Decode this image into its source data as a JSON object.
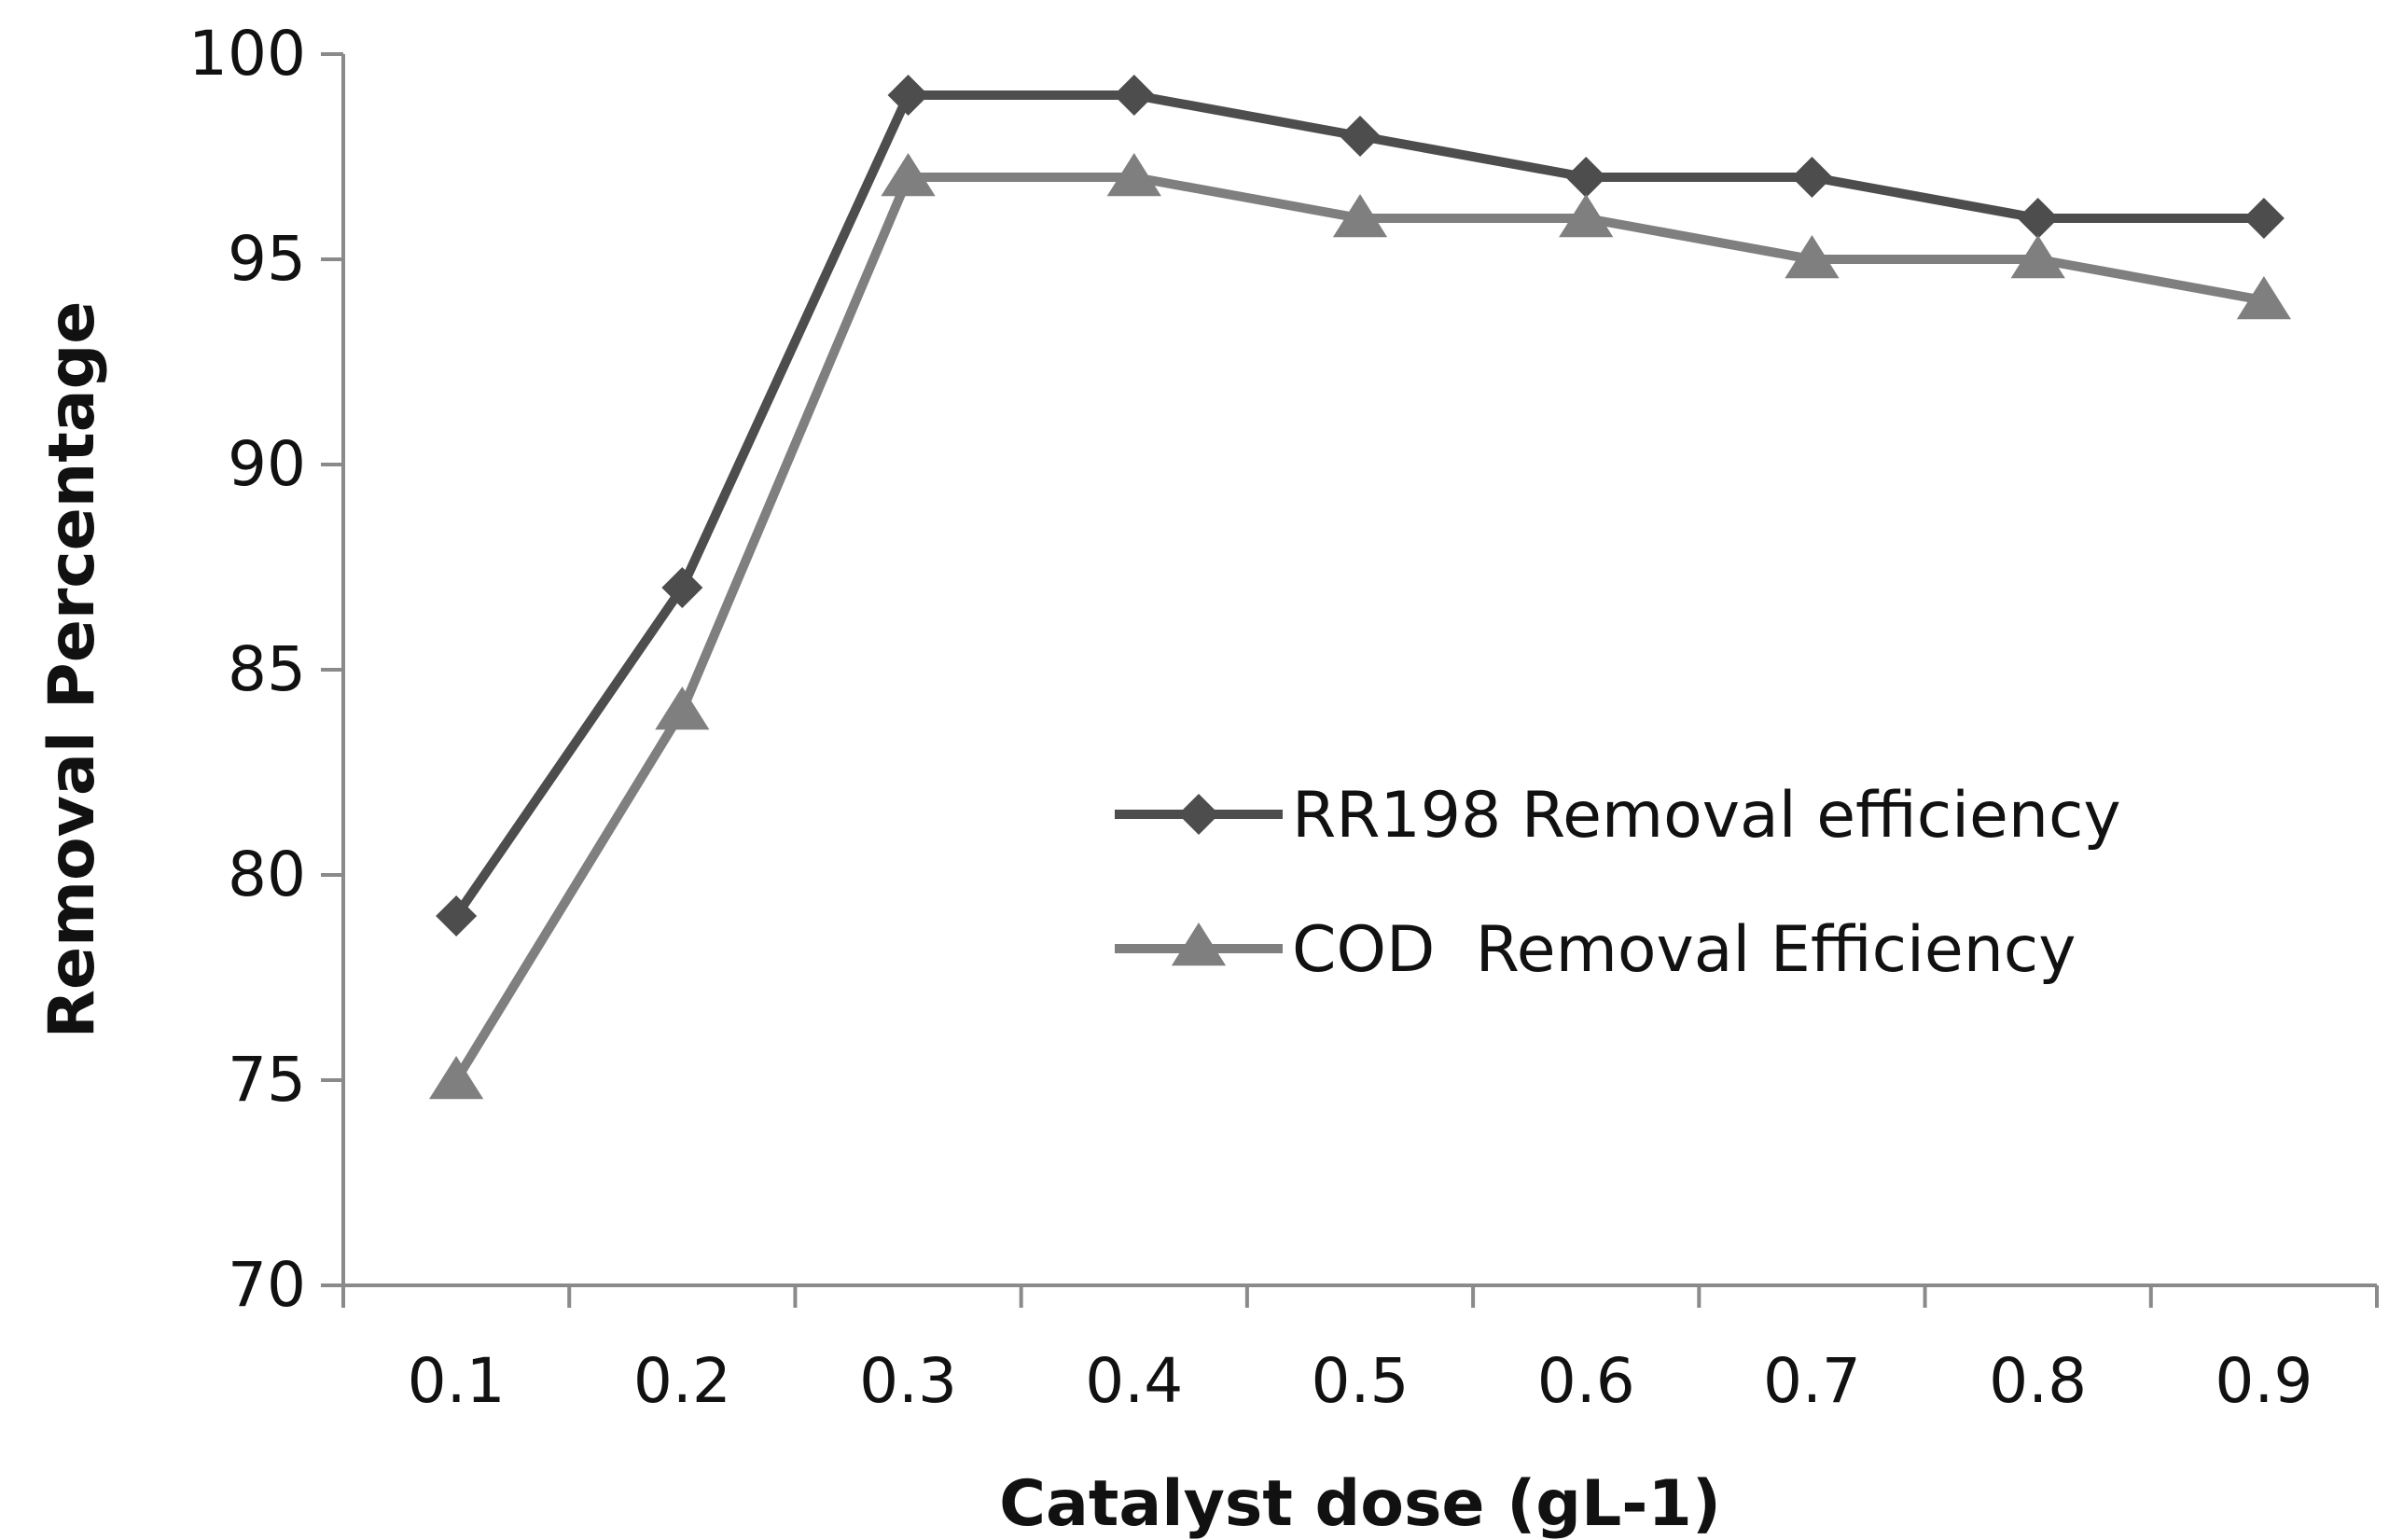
{
  "chart_data": {
    "type": "line",
    "title": "",
    "xlabel": "Catalyst dose (gL-1)",
    "ylabel": "Removal Percentage",
    "categories": [
      "0.1",
      "0.2",
      "0.3",
      "0.4",
      "0.5",
      "0.6",
      "0.7",
      "0.8",
      "0.9"
    ],
    "ylim": [
      70,
      100
    ],
    "yticks": [
      "70",
      "75",
      "80",
      "85",
      "90",
      "95",
      "100"
    ],
    "grid": false,
    "legend_position": "center-right",
    "series": [
      {
        "name": "RR198 Removal efficiency",
        "marker": "diamond",
        "color": "#4d4d4d",
        "values": [
          79,
          87,
          99,
          99,
          98,
          97,
          97,
          96,
          96
        ]
      },
      {
        "name": "COD  Removal Efficiency",
        "marker": "triangle",
        "color": "#7f7f7f",
        "values": [
          75,
          84,
          97,
          97,
          96,
          96,
          95,
          95,
          94
        ]
      }
    ]
  }
}
